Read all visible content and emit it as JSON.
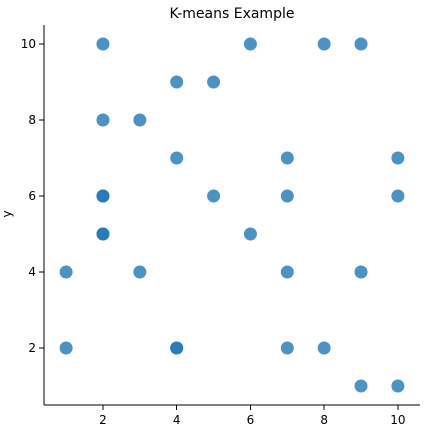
{
  "chart_data": {
    "type": "scatter",
    "title": "K-means Example",
    "xlabel": "",
    "ylabel": "y",
    "xlim": [
      0.4,
      10.6
    ],
    "ylim": [
      0.5,
      10.5
    ],
    "xticks": [
      2,
      4,
      6,
      8,
      10
    ],
    "yticks": [
      2,
      4,
      6,
      8,
      10
    ],
    "grid": false,
    "point_color": "#1f77b4",
    "point_opacity": 0.8,
    "points": [
      {
        "x": 2,
        "y": 10
      },
      {
        "x": 6,
        "y": 10
      },
      {
        "x": 8,
        "y": 10
      },
      {
        "x": 9,
        "y": 10
      },
      {
        "x": 4,
        "y": 9
      },
      {
        "x": 5,
        "y": 9
      },
      {
        "x": 2,
        "y": 8
      },
      {
        "x": 3,
        "y": 8
      },
      {
        "x": 4,
        "y": 7
      },
      {
        "x": 7,
        "y": 7
      },
      {
        "x": 10,
        "y": 7
      },
      {
        "x": 2,
        "y": 6
      },
      {
        "x": 2,
        "y": 6
      },
      {
        "x": 5,
        "y": 6
      },
      {
        "x": 7,
        "y": 6
      },
      {
        "x": 10,
        "y": 6
      },
      {
        "x": 2,
        "y": 5
      },
      {
        "x": 2,
        "y": 5
      },
      {
        "x": 6,
        "y": 5
      },
      {
        "x": 1,
        "y": 4
      },
      {
        "x": 3,
        "y": 4
      },
      {
        "x": 7,
        "y": 4
      },
      {
        "x": 9,
        "y": 4
      },
      {
        "x": 1,
        "y": 2
      },
      {
        "x": 4,
        "y": 2
      },
      {
        "x": 4,
        "y": 2
      },
      {
        "x": 7,
        "y": 2
      },
      {
        "x": 8,
        "y": 2
      },
      {
        "x": 9,
        "y": 1
      },
      {
        "x": 10,
        "y": 1
      }
    ]
  }
}
